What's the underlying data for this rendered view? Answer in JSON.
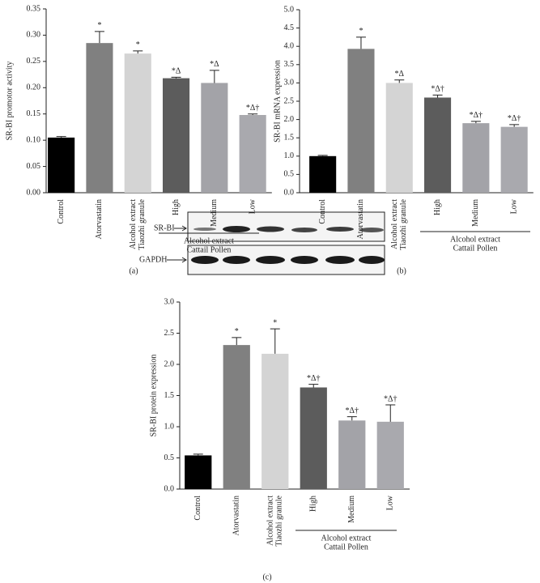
{
  "chart_data": [
    {
      "type": "bar",
      "ylabel": "SR-BI promotor activity",
      "panel_label": "(a)",
      "categories": [
        "Control",
        "Atorvastatin",
        [
          "Alcohol extract",
          "Tiaozhi granule"
        ],
        "High",
        "Medium",
        "Low"
      ],
      "values": [
        0.105,
        0.285,
        0.265,
        0.218,
        0.209,
        0.148
      ],
      "errors": [
        0.002,
        0.022,
        0.005,
        0.002,
        0.024,
        0.002
      ],
      "annotations": [
        null,
        "*",
        "*",
        "*Δ",
        "*Δ",
        "*Δ†"
      ],
      "colors": [
        "#000000",
        "#808080",
        "#d4d4d4",
        "#5c5c5c",
        "#a3a3a8",
        "#a9a9ae"
      ],
      "group_label": [
        "Alcohol extract",
        "Cattail Pollen"
      ],
      "ylim": [
        0,
        0.35
      ],
      "yticks": [
        {
          "value": 0,
          "label": "0.00"
        },
        {
          "value": 0.05,
          "label": "0.05"
        },
        {
          "value": 0.1,
          "label": "0.10"
        },
        {
          "value": 0.15,
          "label": "0.15"
        },
        {
          "value": 0.2,
          "label": "0.20"
        },
        {
          "value": 0.25,
          "label": "0.25"
        },
        {
          "value": 0.3,
          "label": "0.30"
        },
        {
          "value": 0.35,
          "label": "0.35"
        }
      ],
      "grid": false
    },
    {
      "type": "bar",
      "ylabel": "SR-BI mRNA expression",
      "panel_label": "(b)",
      "categories": [
        "Control",
        "Atorvastatin",
        [
          "Alcohol extract",
          "Tiaozhi granule"
        ],
        "High",
        "Medium",
        "Low"
      ],
      "values": [
        1.0,
        3.93,
        3.0,
        2.6,
        1.9,
        1.8
      ],
      "errors": [
        0.02,
        0.32,
        0.08,
        0.07,
        0.05,
        0.06
      ],
      "annotations": [
        null,
        "*",
        "*Δ",
        "*Δ†",
        "*Δ†",
        "*Δ†"
      ],
      "colors": [
        "#000000",
        "#808080",
        "#d4d4d4",
        "#5c5c5c",
        "#a3a3a8",
        "#a9a9ae"
      ],
      "group_label": [
        "Alcohol extract",
        "Cattail Pollen"
      ],
      "ylim": [
        0,
        5
      ],
      "yticks": [
        {
          "value": 0,
          "label": "0.0"
        },
        0.5,
        {
          "value": 1,
          "label": "1.0"
        },
        1.5,
        {
          "value": 2,
          "label": "2.0"
        },
        2.5,
        {
          "value": 3,
          "label": "3.0"
        },
        3.5,
        {
          "value": 4,
          "label": "4.0"
        },
        4.5,
        {
          "value": 5,
          "label": "5.0"
        }
      ],
      "grid": false
    },
    {
      "type": "bar",
      "ylabel": "SR-BI protein expression",
      "panel_label": "(c)",
      "blot_labels": [
        "SR-BI",
        "GAPDH"
      ],
      "categories": [
        "Control",
        "Atorvastatin",
        [
          "Alcohol extract",
          "Tiaozhi granule"
        ],
        "High",
        "Medium",
        "Low"
      ],
      "values": [
        0.54,
        2.31,
        2.17,
        1.63,
        1.1,
        1.08
      ],
      "errors": [
        0.02,
        0.12,
        0.4,
        0.05,
        0.06,
        0.27
      ],
      "annotations": [
        null,
        "*",
        "*",
        "*Δ†",
        "*Δ†",
        "*Δ†"
      ],
      "colors": [
        "#000000",
        "#808080",
        "#d4d4d4",
        "#5c5c5c",
        "#a3a3a8",
        "#a9a9ae"
      ],
      "group_label": [
        "Alcohol extract",
        "Cattail Pollen"
      ],
      "ylim": [
        0,
        3
      ],
      "yticks": [
        {
          "value": 0,
          "label": "0.0"
        },
        0.5,
        {
          "value": 1,
          "label": "1.0"
        },
        1.5,
        {
          "value": 2,
          "label": "2.0"
        },
        2.5,
        {
          "value": 3,
          "label": "3.0"
        }
      ],
      "grid": false
    }
  ]
}
